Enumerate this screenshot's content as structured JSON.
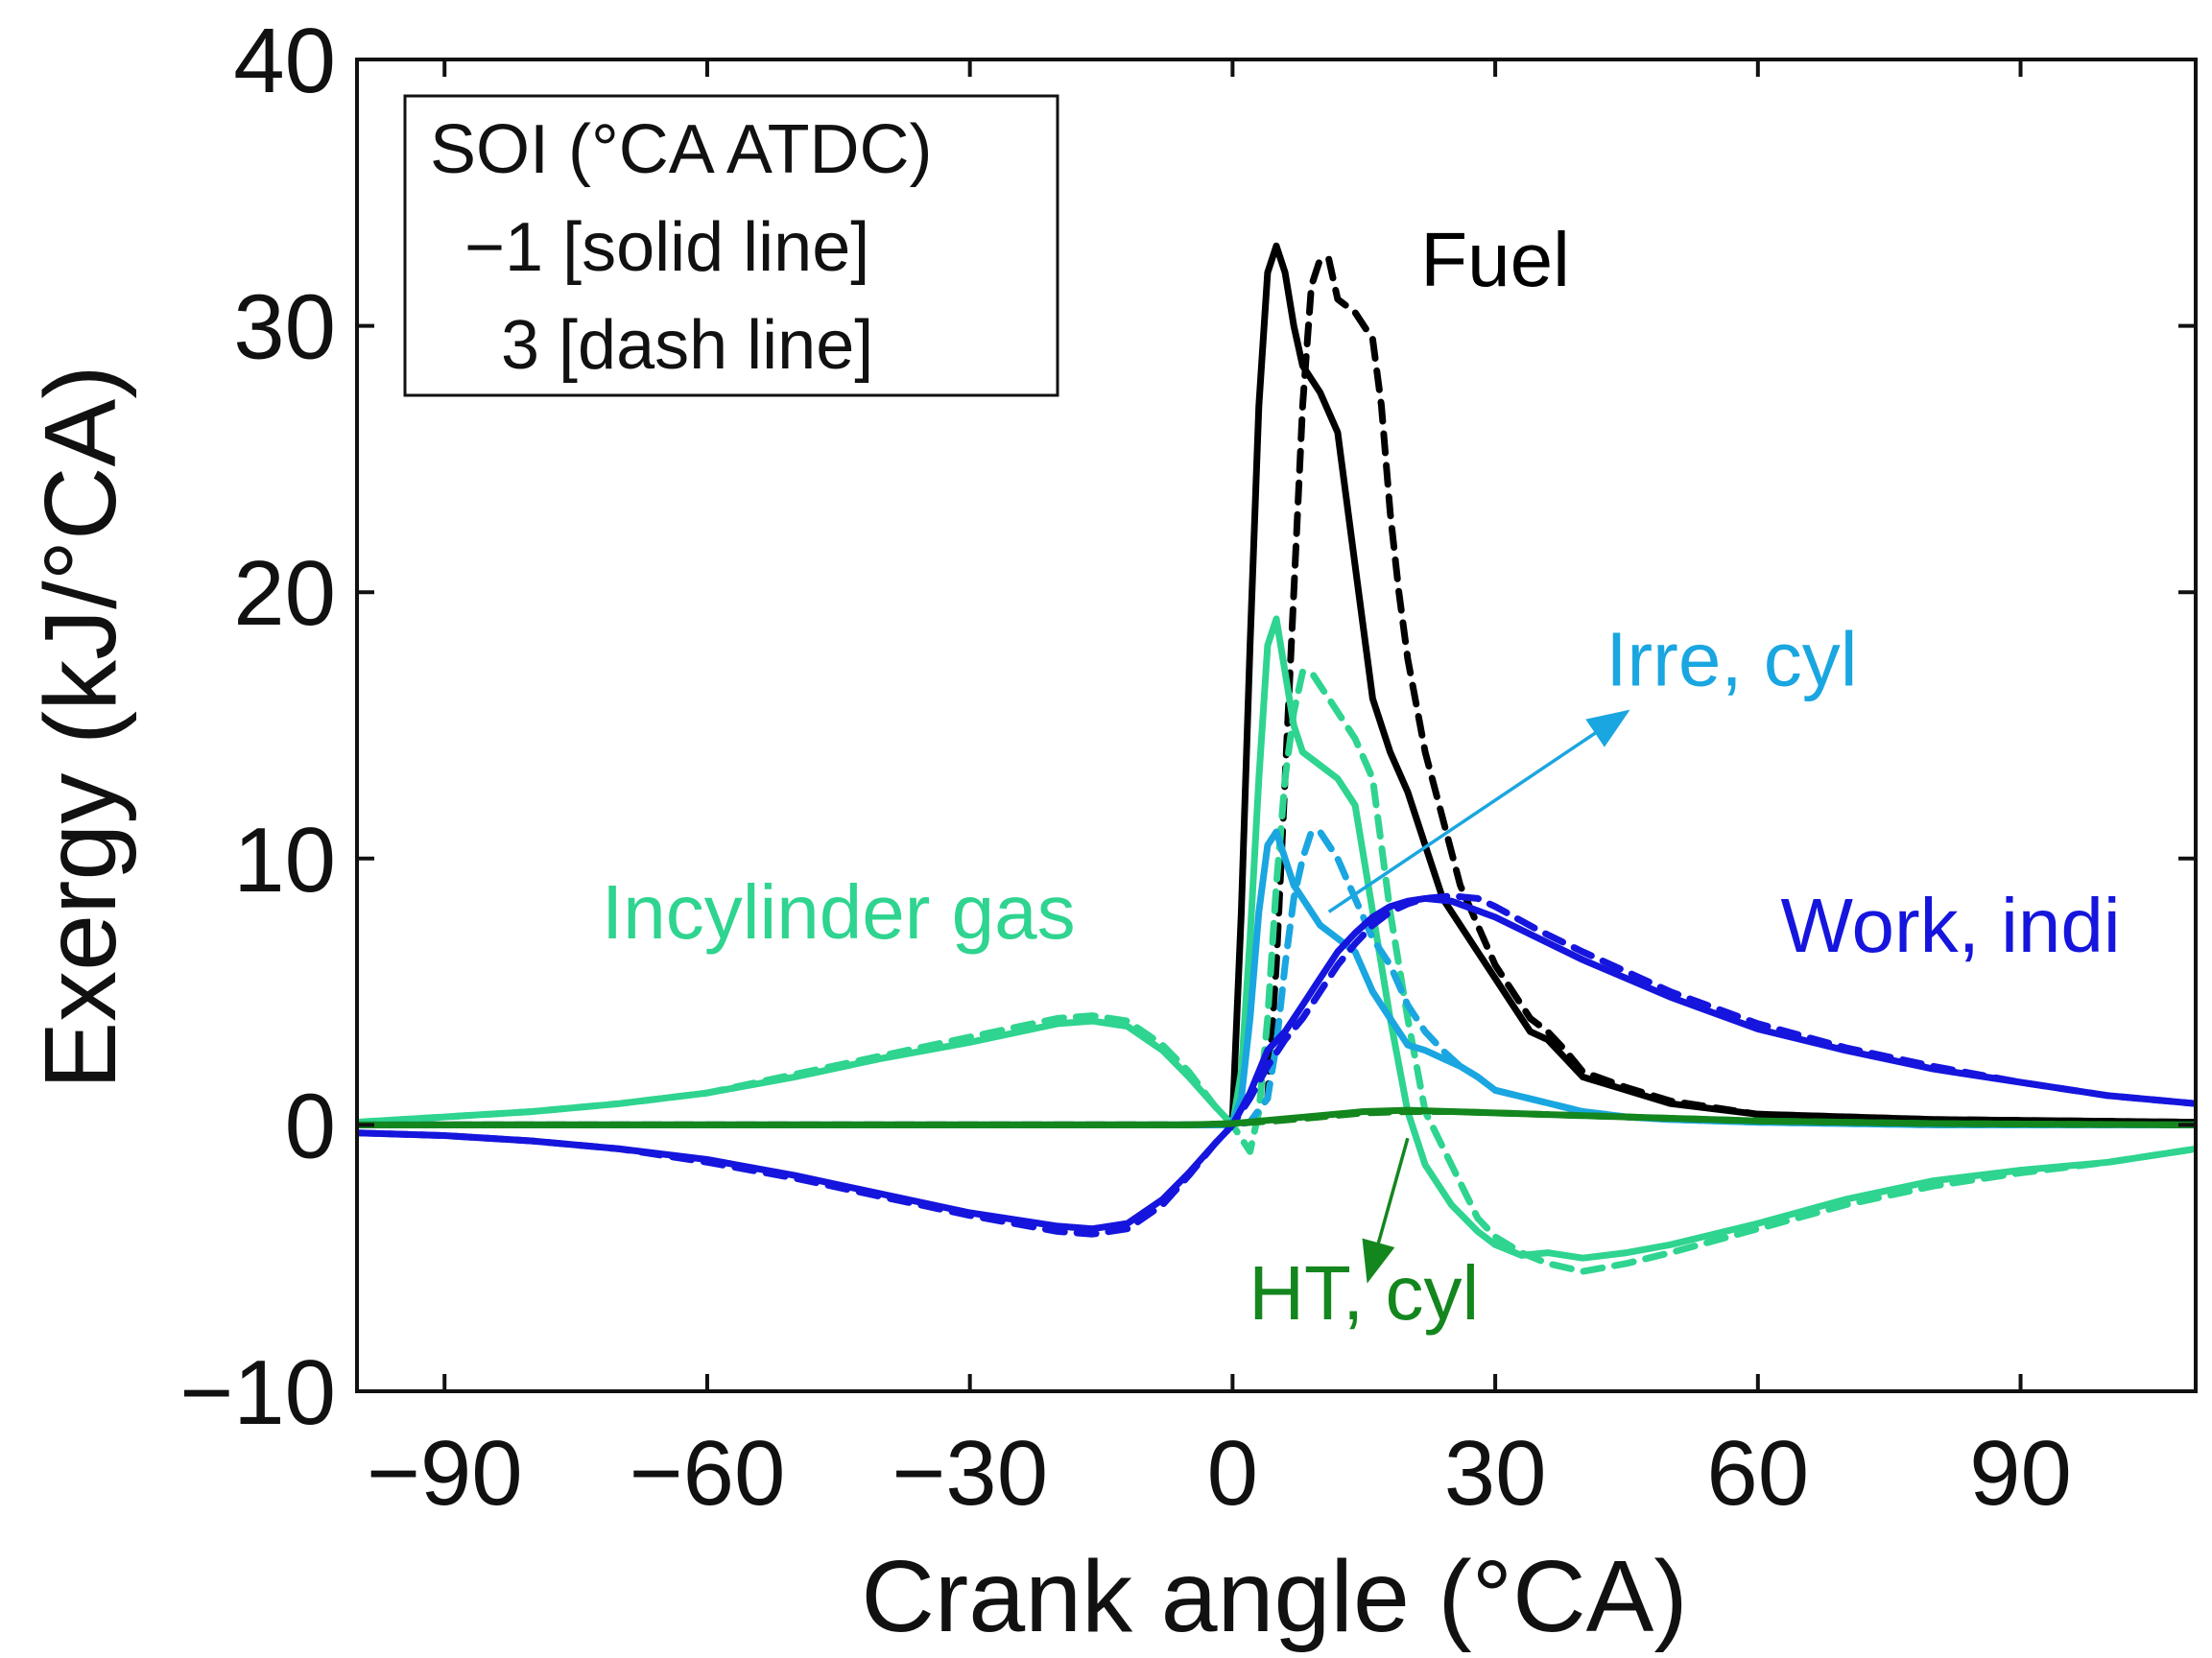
{
  "chart_data": {
    "type": "line",
    "xlabel": "Crank angle (°CA)",
    "ylabel": "Exergy (kJ/°CA)",
    "xlim": [
      -100,
      110
    ],
    "ylim": [
      -10,
      40
    ],
    "xticks": [
      -90,
      -60,
      -30,
      0,
      30,
      60,
      90
    ],
    "yticks": [
      -10,
      0,
      10,
      20,
      30,
      40
    ],
    "xtick_labels": [
      "−90",
      "−60",
      "−30",
      "0",
      "30",
      "60",
      "90"
    ],
    "ytick_labels": [
      "−10",
      "0",
      "10",
      "20",
      "30",
      "40"
    ],
    "grid": false,
    "legend": {
      "position": "top-left",
      "lines": [
        "SOI (°CA ATDC)",
        "−1 [solid line]",
        "3 [dash line]"
      ]
    },
    "annotations": [
      {
        "id": "fuel",
        "text": "Fuel",
        "color": "#000000",
        "x": 30,
        "y": 31.5,
        "arrow": null
      },
      {
        "id": "irre",
        "text": "Irre, cyl",
        "color": "#1aa6e0",
        "x": 57,
        "y": 16.5,
        "arrow": {
          "from": [
            11,
            8
          ],
          "to": [
            45,
            15.5
          ]
        }
      },
      {
        "id": "work",
        "text": "Work, indi",
        "color": "#1515dd",
        "x": 82,
        "y": 6.5,
        "arrow": null
      },
      {
        "id": "incyl",
        "text": "Incylinder gas",
        "color": "#2ed48f",
        "x": -45,
        "y": 7,
        "arrow": null
      },
      {
        "id": "ht",
        "text": "HT, cyl",
        "color": "#14861e",
        "x": 15,
        "y": -7.3,
        "arrow": {
          "from": [
            20,
            -0.5
          ],
          "to": [
            15.5,
            -5.8
          ]
        }
      }
    ],
    "series": [
      {
        "id": "fuel-solid",
        "color": "#000000",
        "style": "solid",
        "x": [
          -100,
          -5,
          -1,
          0,
          1,
          2,
          3,
          4,
          5,
          6,
          7,
          8,
          10,
          12,
          14,
          16,
          18,
          20,
          22,
          24,
          26,
          28,
          30,
          32,
          34,
          36,
          38,
          40,
          45,
          50,
          60,
          80,
          110
        ],
        "y": [
          0,
          0,
          0,
          0.3,
          8,
          18,
          27,
          32,
          33,
          32,
          30,
          28.5,
          27.5,
          26,
          21,
          16,
          14,
          12.5,
          10.5,
          8.5,
          7.5,
          6.5,
          5.5,
          4.5,
          3.5,
          3.2,
          2.5,
          1.8,
          1.3,
          0.8,
          0.4,
          0.2,
          0.1
        ]
      },
      {
        "id": "fuel-dash",
        "color": "#000000",
        "style": "dash",
        "x": [
          -100,
          0,
          2,
          4,
          5,
          6,
          7,
          8,
          9,
          10,
          11,
          12,
          14,
          16,
          17,
          18,
          19,
          20,
          22,
          24,
          26,
          28,
          30,
          32,
          34,
          36,
          38,
          40,
          45,
          50,
          60,
          80,
          110
        ],
        "y": [
          0,
          0,
          0.1,
          1,
          6,
          13,
          20,
          27,
          31.5,
          32.5,
          32.5,
          31,
          30.5,
          29.5,
          27,
          23,
          20,
          17.5,
          14,
          11.5,
          9,
          7.5,
          6,
          5,
          4,
          3.5,
          2.8,
          2,
          1.4,
          0.9,
          0.4,
          0.2,
          0.1
        ]
      },
      {
        "id": "gas-solid",
        "color": "#2ed48f",
        "style": "solid",
        "x": [
          -100,
          -90,
          -80,
          -70,
          -60,
          -50,
          -40,
          -30,
          -20,
          -16,
          -12,
          -8,
          -5,
          -2,
          0,
          1,
          2,
          3,
          4,
          5,
          6,
          7,
          8,
          10,
          12,
          14,
          16,
          18,
          20,
          22,
          25,
          28,
          30,
          33,
          36,
          40,
          45,
          50,
          60,
          70,
          80,
          90,
          100,
          110
        ],
        "y": [
          0.1,
          0.3,
          0.5,
          0.8,
          1.2,
          1.8,
          2.5,
          3.1,
          3.8,
          3.9,
          3.7,
          2.8,
          1.8,
          0.7,
          0,
          2,
          7,
          13,
          18,
          19,
          17,
          15,
          14,
          13.5,
          13,
          12,
          8,
          4,
          0.5,
          -1.5,
          -3,
          -4,
          -4.5,
          -4.9,
          -4.8,
          -5,
          -4.8,
          -4.5,
          -3.7,
          -2.8,
          -2.1,
          -1.7,
          -1.4,
          -0.9
        ]
      },
      {
        "id": "gas-dash",
        "color": "#2ed48f",
        "style": "dash",
        "x": [
          -100,
          -90,
          -80,
          -70,
          -60,
          -50,
          -40,
          -30,
          -20,
          -16,
          -12,
          -8,
          -5,
          -2,
          0,
          1,
          2,
          3,
          4,
          5,
          6,
          7,
          8,
          9,
          10,
          12,
          14,
          16,
          18,
          20,
          22,
          25,
          28,
          30,
          33,
          36,
          40,
          45,
          50,
          60,
          70,
          80,
          90,
          100,
          110
        ],
        "y": [
          0.1,
          0.3,
          0.5,
          0.8,
          1.2,
          1.9,
          2.6,
          3.3,
          4,
          4.1,
          3.9,
          3,
          2,
          0.7,
          0,
          -0.5,
          -1,
          0.5,
          4,
          9,
          13,
          15.5,
          17,
          17,
          16.5,
          15.5,
          14.5,
          13,
          8,
          4,
          0.5,
          -1.5,
          -3.5,
          -4.2,
          -4.8,
          -5.2,
          -5.5,
          -5.2,
          -4.8,
          -3.9,
          -3,
          -2.3,
          -1.8,
          -1.4,
          -0.9
        ]
      },
      {
        "id": "irre-solid",
        "color": "#1aa6e0",
        "style": "solid",
        "x": [
          -100,
          -10,
          -5,
          -1,
          0,
          1,
          2,
          3,
          4,
          5,
          6,
          7,
          8,
          10,
          12,
          14,
          16,
          18,
          20,
          22,
          24,
          26,
          28,
          30,
          35,
          40,
          45,
          50,
          60,
          80,
          110
        ],
        "y": [
          0,
          0,
          0,
          0,
          0.1,
          1,
          4,
          8,
          10.5,
          11,
          10,
          9,
          8.5,
          7.5,
          7,
          6.5,
          5,
          4,
          3,
          2.8,
          2.5,
          2.2,
          1.8,
          1.3,
          0.9,
          0.5,
          0.3,
          0.2,
          0.1,
          0,
          0
        ]
      },
      {
        "id": "irre-dash",
        "color": "#1aa6e0",
        "style": "dash",
        "x": [
          -100,
          0,
          2,
          4,
          5,
          6,
          7,
          8,
          9,
          10,
          12,
          14,
          16,
          18,
          20,
          22,
          24,
          26,
          28,
          30,
          35,
          40,
          45,
          50,
          60,
          80,
          110
        ],
        "y": [
          0,
          0,
          0.1,
          1,
          3,
          6,
          8.5,
          10,
          11,
          11,
          10,
          8.5,
          7,
          6,
          4.5,
          3.5,
          2.8,
          2.2,
          1.8,
          1.3,
          0.9,
          0.5,
          0.3,
          0.2,
          0.1,
          0,
          0
        ]
      },
      {
        "id": "work-solid",
        "color": "#1515dd",
        "style": "solid",
        "x": [
          -100,
          -90,
          -80,
          -70,
          -60,
          -50,
          -40,
          -30,
          -20,
          -16,
          -12,
          -8,
          -5,
          -2,
          0,
          2,
          4,
          6,
          8,
          10,
          12,
          14,
          16,
          18,
          20,
          22,
          25,
          30,
          35,
          40,
          50,
          60,
          70,
          80,
          90,
          100,
          110
        ],
        "y": [
          -0.3,
          -0.4,
          -0.6,
          -0.9,
          -1.3,
          -1.9,
          -2.6,
          -3.3,
          -3.8,
          -3.9,
          -3.7,
          -2.8,
          -1.8,
          -0.7,
          0,
          1.2,
          2.8,
          3.5,
          4.5,
          5.5,
          6.5,
          7.2,
          7.8,
          8.2,
          8.4,
          8.5,
          8.4,
          7.8,
          7,
          6.2,
          4.8,
          3.6,
          2.8,
          2.1,
          1.6,
          1.1,
          0.8
        ]
      },
      {
        "id": "work-dash",
        "color": "#1515dd",
        "style": "dash",
        "x": [
          -100,
          -90,
          -80,
          -70,
          -60,
          -50,
          -40,
          -30,
          -20,
          -16,
          -12,
          -8,
          -5,
          -2,
          0,
          2,
          4,
          6,
          8,
          10,
          12,
          14,
          16,
          18,
          20,
          22,
          25,
          28,
          30,
          35,
          40,
          50,
          60,
          70,
          80,
          90,
          100,
          110
        ],
        "y": [
          -0.3,
          -0.4,
          -0.6,
          -0.9,
          -1.4,
          -2,
          -2.7,
          -3.4,
          -4,
          -4.1,
          -3.9,
          -3,
          -1.9,
          -0.7,
          0,
          1,
          2.2,
          3.2,
          4,
          5,
          6,
          6.8,
          7.5,
          8,
          8.3,
          8.5,
          8.6,
          8.5,
          8.2,
          7.3,
          6.5,
          5,
          3.8,
          2.9,
          2.2,
          1.6,
          1.1,
          0.8
        ]
      },
      {
        "id": "ht-solid",
        "color": "#14861e",
        "style": "solid",
        "x": [
          -100,
          -20,
          -5,
          0,
          5,
          10,
          15,
          20,
          25,
          30,
          40,
          50,
          60,
          80,
          110
        ],
        "y": [
          0,
          0,
          0,
          0.05,
          0.2,
          0.35,
          0.5,
          0.55,
          0.5,
          0.45,
          0.35,
          0.25,
          0.15,
          0.05,
          0
        ]
      },
      {
        "id": "ht-dash",
        "color": "#14861e",
        "style": "dash",
        "x": [
          -100,
          -20,
          -5,
          0,
          5,
          10,
          15,
          20,
          25,
          30,
          40,
          50,
          60,
          80,
          110
        ],
        "y": [
          0,
          0,
          0,
          0.05,
          0.15,
          0.3,
          0.45,
          0.5,
          0.5,
          0.45,
          0.35,
          0.25,
          0.15,
          0.05,
          0
        ]
      }
    ]
  }
}
